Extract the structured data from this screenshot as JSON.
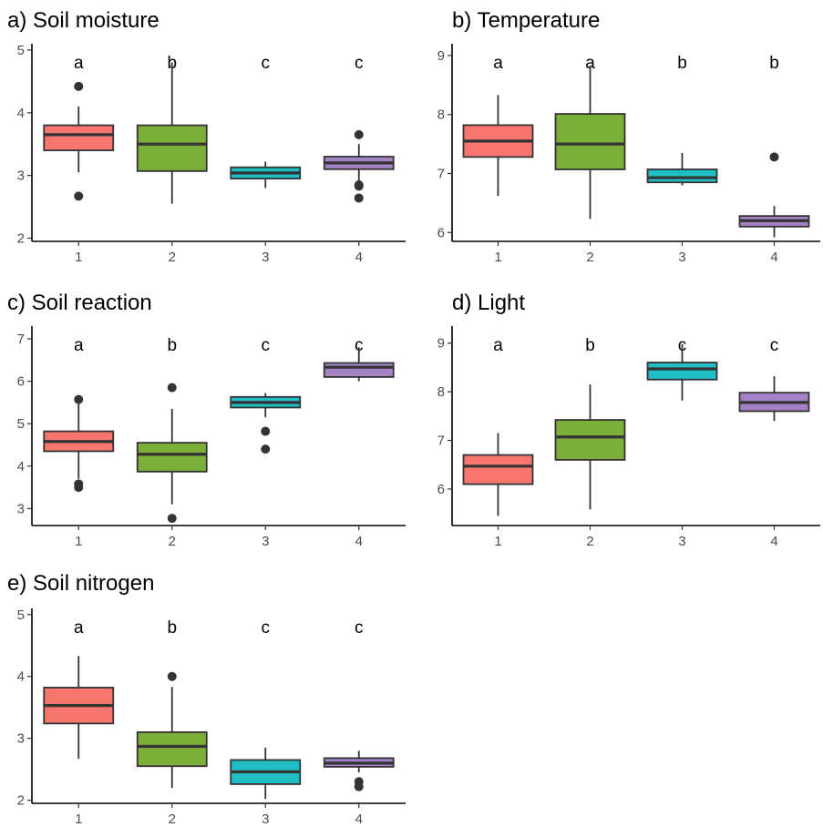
{
  "chart_data": [
    {
      "type": "box",
      "title": "a) Soil moisture",
      "categories": [
        "1",
        "2",
        "3",
        "4"
      ],
      "ylim": [
        1.95,
        5.1
      ],
      "yticks": [
        2,
        3,
        4,
        5
      ],
      "letters": [
        "a",
        "b",
        "c",
        "c"
      ],
      "colors": [
        "#f8766d",
        "#7cae3a",
        "#1ebec4",
        "#a383c4"
      ],
      "boxes": [
        {
          "min": 3.05,
          "q1": 3.4,
          "median": 3.65,
          "q3": 3.8,
          "max": 4.1,
          "outliers": [
            4.42,
            2.67
          ]
        },
        {
          "min": 2.55,
          "q1": 3.07,
          "median": 3.5,
          "q3": 3.8,
          "max": 4.8,
          "outliers": []
        },
        {
          "min": 2.8,
          "q1": 2.95,
          "median": 3.04,
          "q3": 3.13,
          "max": 3.22,
          "outliers": []
        },
        {
          "min": 2.9,
          "q1": 3.1,
          "median": 3.2,
          "q3": 3.3,
          "max": 3.5,
          "outliers": [
            3.65,
            2.85,
            2.83,
            2.64
          ]
        }
      ]
    },
    {
      "type": "box",
      "title": "b) Temperature",
      "categories": [
        "1",
        "2",
        "3",
        "4"
      ],
      "ylim": [
        5.85,
        9.2
      ],
      "yticks": [
        6,
        7,
        8,
        9
      ],
      "letters": [
        "a",
        "a",
        "b",
        "b"
      ],
      "colors": [
        "#f8766d",
        "#7cae3a",
        "#1ebec4",
        "#a383c4"
      ],
      "boxes": [
        {
          "min": 6.62,
          "q1": 7.28,
          "median": 7.55,
          "q3": 7.82,
          "max": 8.33,
          "outliers": []
        },
        {
          "min": 6.23,
          "q1": 7.07,
          "median": 7.5,
          "q3": 8.01,
          "max": 8.83,
          "outliers": []
        },
        {
          "min": 6.8,
          "q1": 6.85,
          "median": 6.93,
          "q3": 7.07,
          "max": 7.35,
          "outliers": []
        },
        {
          "min": 5.92,
          "q1": 6.1,
          "median": 6.2,
          "q3": 6.28,
          "max": 6.45,
          "outliers": [
            7.28
          ]
        }
      ]
    },
    {
      "type": "box",
      "title": "c) Soil reaction",
      "categories": [
        "1",
        "2",
        "3",
        "4"
      ],
      "ylim": [
        2.6,
        7.3
      ],
      "yticks": [
        3,
        4,
        5,
        6,
        7
      ],
      "letters": [
        "a",
        "b",
        "c",
        "c"
      ],
      "colors": [
        "#f8766d",
        "#7cae3a",
        "#1ebec4",
        "#a383c4"
      ],
      "boxes": [
        {
          "min": 3.7,
          "q1": 4.35,
          "median": 4.58,
          "q3": 4.82,
          "max": 5.5,
          "outliers": [
            5.57,
            3.58,
            3.5
          ]
        },
        {
          "min": 3.1,
          "q1": 3.87,
          "median": 4.28,
          "q3": 4.55,
          "max": 5.35,
          "outliers": [
            5.85,
            2.77
          ]
        },
        {
          "min": 5.15,
          "q1": 5.38,
          "median": 5.5,
          "q3": 5.63,
          "max": 5.72,
          "outliers": [
            4.82,
            4.4
          ]
        },
        {
          "min": 6.0,
          "q1": 6.1,
          "median": 6.33,
          "q3": 6.43,
          "max": 6.8,
          "outliers": []
        }
      ]
    },
    {
      "type": "box",
      "title": "d) Light",
      "categories": [
        "1",
        "2",
        "3",
        "4"
      ],
      "ylim": [
        5.25,
        9.35
      ],
      "yticks": [
        6,
        7,
        8,
        9
      ],
      "letters": [
        "a",
        "b",
        "c",
        "c"
      ],
      "colors": [
        "#f8766d",
        "#7cae3a",
        "#1ebec4",
        "#a383c4"
      ],
      "boxes": [
        {
          "min": 5.45,
          "q1": 6.1,
          "median": 6.47,
          "q3": 6.7,
          "max": 7.15,
          "outliers": []
        },
        {
          "min": 5.58,
          "q1": 6.6,
          "median": 7.07,
          "q3": 7.42,
          "max": 8.15,
          "outliers": []
        },
        {
          "min": 7.82,
          "q1": 8.25,
          "median": 8.47,
          "q3": 8.6,
          "max": 8.98,
          "outliers": []
        },
        {
          "min": 7.4,
          "q1": 7.6,
          "median": 7.78,
          "q3": 7.98,
          "max": 8.32,
          "outliers": []
        }
      ]
    },
    {
      "type": "box",
      "title": "e) Soil nitrogen",
      "categories": [
        "1",
        "2",
        "3",
        "4"
      ],
      "ylim": [
        1.95,
        5.1
      ],
      "yticks": [
        2,
        3,
        4,
        5
      ],
      "letters": [
        "a",
        "b",
        "c",
        "c"
      ],
      "colors": [
        "#f8766d",
        "#7cae3a",
        "#1ebec4",
        "#a383c4"
      ],
      "boxes": [
        {
          "min": 2.67,
          "q1": 3.24,
          "median": 3.53,
          "q3": 3.82,
          "max": 4.33,
          "outliers": []
        },
        {
          "min": 2.2,
          "q1": 2.55,
          "median": 2.87,
          "q3": 3.1,
          "max": 3.83,
          "outliers": [
            4.0
          ]
        },
        {
          "min": 2.02,
          "q1": 2.26,
          "median": 2.46,
          "q3": 2.65,
          "max": 2.85,
          "outliers": []
        },
        {
          "min": 2.45,
          "q1": 2.54,
          "median": 2.6,
          "q3": 2.68,
          "max": 2.8,
          "outliers": [
            2.3,
            2.22
          ]
        }
      ]
    }
  ]
}
